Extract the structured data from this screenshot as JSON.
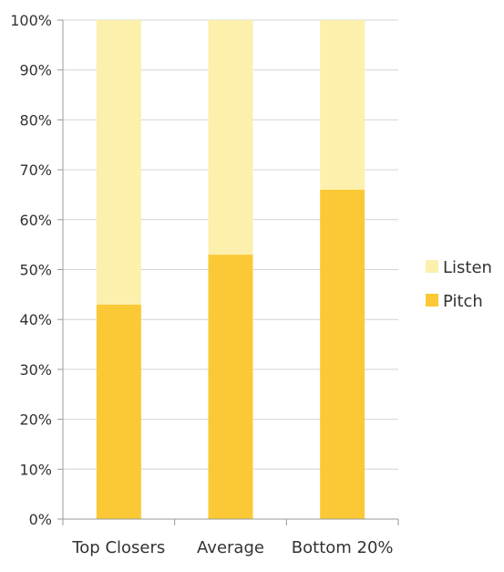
{
  "chart_data": {
    "type": "bar",
    "stacked": true,
    "categories": [
      "Top Closers",
      "Average",
      "Bottom 20%"
    ],
    "series": [
      {
        "name": "Pitch",
        "values": [
          43,
          53,
          66
        ],
        "color": "#fbc935"
      },
      {
        "name": "Listen",
        "values": [
          57,
          47,
          34
        ],
        "color": "#fdf0ac"
      }
    ],
    "ylim": [
      0,
      100
    ],
    "yticks": [
      "0%",
      "10%",
      "20%",
      "30%",
      "40%",
      "50%",
      "60%",
      "70%",
      "80%",
      "90%",
      "100%"
    ],
    "grid": true,
    "legend": {
      "placement": "right",
      "entries": [
        "Listen",
        "Pitch"
      ]
    },
    "title": "",
    "xlabel": "",
    "ylabel": ""
  }
}
